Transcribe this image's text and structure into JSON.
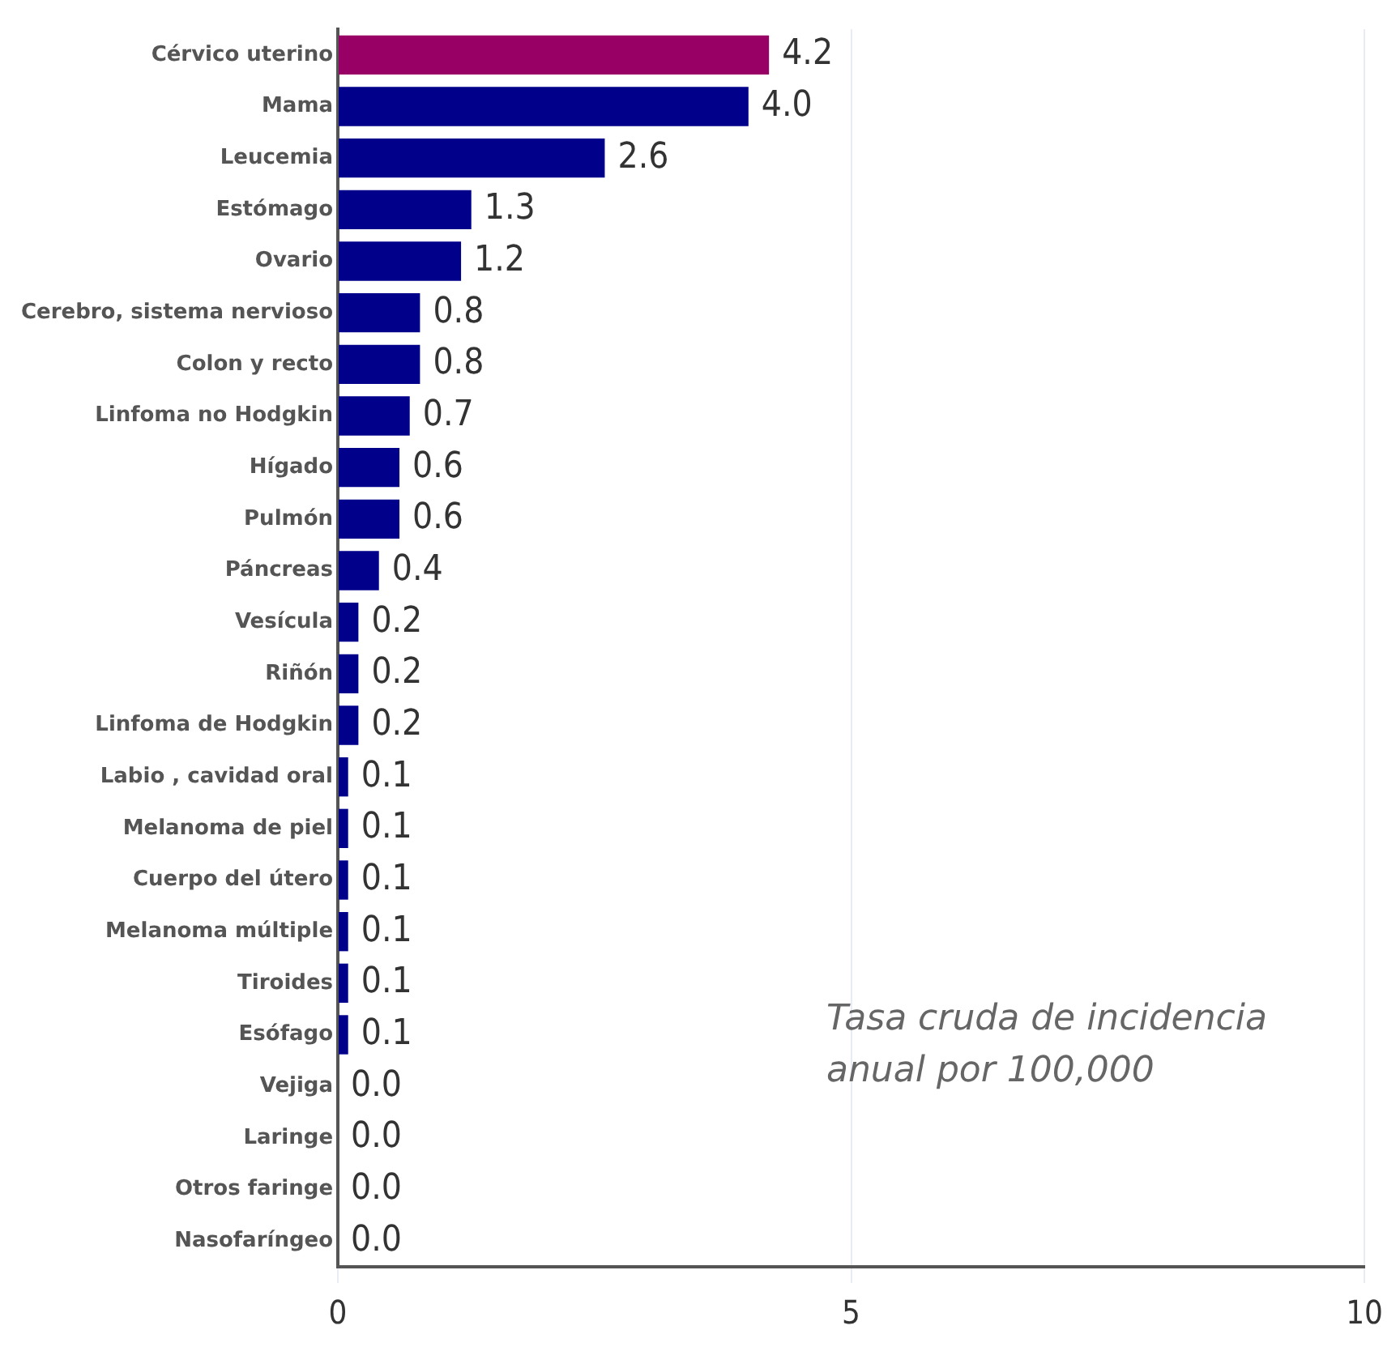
{
  "chart_data": {
    "type": "bar",
    "orientation": "horizontal",
    "categories": [
      "Cérvico uterino",
      "Mama",
      "Leucemia",
      "Estómago",
      "Ovario",
      "Cerebro, sistema nervioso",
      "Colon y recto",
      "Linfoma no Hodgkin",
      "Hígado",
      "Pulmón",
      "Páncreas",
      "Vesícula",
      "Riñón",
      "Linfoma de Hodgkin",
      "Labio , cavidad oral",
      "Melanoma de piel",
      "Cuerpo del útero",
      "Melanoma múltiple",
      "Tiroides",
      "Esófago",
      "Vejiga",
      "Laringe",
      "Otros faringe",
      "Nasofaríngeo"
    ],
    "values": [
      4.2,
      4.0,
      2.6,
      1.3,
      1.2,
      0.8,
      0.8,
      0.7,
      0.6,
      0.6,
      0.4,
      0.2,
      0.2,
      0.2,
      0.1,
      0.1,
      0.1,
      0.1,
      0.1,
      0.1,
      0.0,
      0.0,
      0.0,
      0.0
    ],
    "value_labels": [
      "4.2",
      "4.0",
      "2.6",
      "1.3",
      "1.2",
      "0.8",
      "0.8",
      "0.7",
      "0.6",
      "0.6",
      "0.4",
      "0.2",
      "0.2",
      "0.2",
      "0.1",
      "0.1",
      "0.1",
      "0.1",
      "0.1",
      "0.1",
      "0.0",
      "0.0",
      "0.0",
      "0.0"
    ],
    "colors": [
      "#990066",
      "#00008b",
      "#00008b",
      "#00008b",
      "#00008b",
      "#00008b",
      "#00008b",
      "#00008b",
      "#00008b",
      "#00008b",
      "#00008b",
      "#00008b",
      "#00008b",
      "#00008b",
      "#00008b",
      "#00008b",
      "#00008b",
      "#00008b",
      "#00008b",
      "#00008b",
      "#00008b",
      "#00008b",
      "#00008b",
      "#00008b"
    ],
    "xlim": [
      0,
      10
    ],
    "xticks": [
      0,
      5,
      10
    ],
    "grid": "x",
    "annotations": [
      "Tasa cruda de incidencia anual por 100,000"
    ]
  }
}
